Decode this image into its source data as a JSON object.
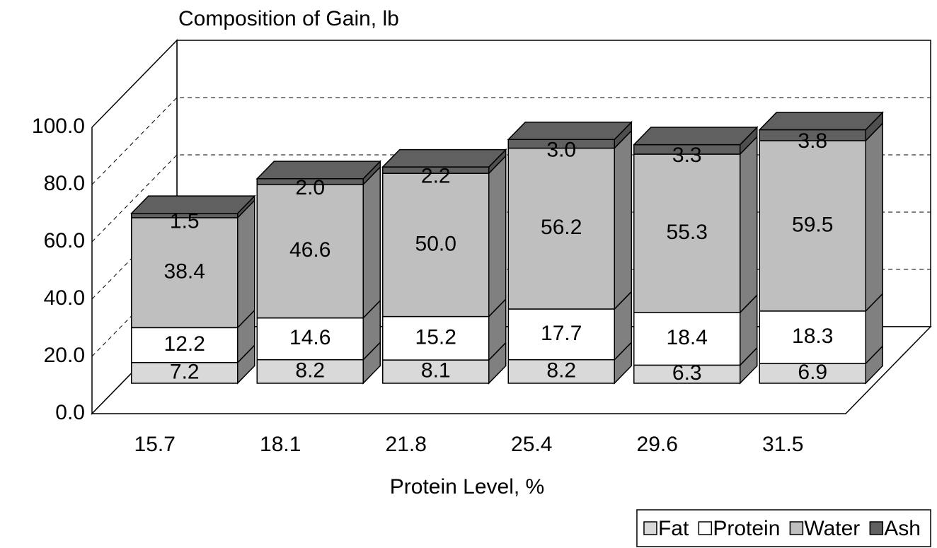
{
  "chart_data": {
    "type": "bar3d_stacked",
    "title": "Composition of Gain, lb",
    "x_label": "Protein Level, %",
    "categories": [
      "15.7",
      "18.1",
      "21.8",
      "25.4",
      "29.6",
      "31.5"
    ],
    "series": [
      {
        "name": "Fat",
        "color": "#d9d9d9",
        "values": [
          7.2,
          8.2,
          8.1,
          8.2,
          6.3,
          6.9
        ],
        "value_labels": [
          "7.2",
          "8.2",
          "8.1",
          "8.2",
          "6.3",
          "6.9"
        ]
      },
      {
        "name": "Protein",
        "color": "#ffffff",
        "values": [
          12.2,
          14.6,
          15.2,
          17.7,
          18.4,
          18.3
        ],
        "value_labels": [
          "12.2",
          "14.6",
          "15.2",
          "17.7",
          "18.4",
          "18.3"
        ]
      },
      {
        "name": "Water",
        "color": "#bfbfbf",
        "values": [
          38.4,
          46.6,
          50.0,
          56.2,
          55.3,
          59.5
        ],
        "value_labels": [
          "38.4",
          "46.6",
          "50.0",
          "56.2",
          "55.3",
          "59.5"
        ]
      },
      {
        "name": "Ash",
        "color": "#606060",
        "values": [
          1.5,
          2.0,
          2.2,
          3.0,
          3.3,
          3.8
        ],
        "value_labels": [
          "1.5",
          "2.0",
          "2.2",
          "3.0",
          "3.3",
          "3.8"
        ]
      }
    ],
    "ylim": [
      0,
      100
    ],
    "yticks": [
      {
        "value": 0,
        "label": "0.0"
      },
      {
        "value": 20,
        "label": "20.0"
      },
      {
        "value": 40,
        "label": "40.0"
      },
      {
        "value": 60,
        "label": "60.0"
      },
      {
        "value": 80,
        "label": "80.0"
      },
      {
        "value": 100,
        "label": "100.0"
      }
    ],
    "grid": true,
    "legend": "bottom-right"
  }
}
